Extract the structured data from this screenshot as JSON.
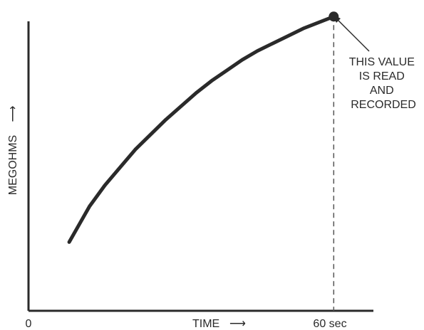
{
  "chart_data": {
    "type": "line",
    "title": "",
    "xlabel": "TIME",
    "ylabel": "MEGOHMS",
    "x_origin_label": "0",
    "x_end_label": "60 sec",
    "x_arrow": "⟶",
    "y_arrow": "⟶",
    "xlim": [
      0,
      65
    ],
    "ylim": [
      0,
      100
    ],
    "series": [
      {
        "x": [
          8,
          10,
          12,
          15,
          18,
          21,
          24,
          27,
          30,
          33,
          36,
          39,
          42,
          45,
          48,
          51,
          54,
          57,
          60
        ],
        "y": [
          23,
          29,
          35,
          42,
          48,
          54,
          59,
          64,
          68.5,
          73,
          77,
          80.5,
          84,
          87,
          89.5,
          92,
          94.5,
          96.5,
          98.5
        ]
      }
    ],
    "marker": {
      "x": 60,
      "y": 98.5
    },
    "annotation": {
      "lines": [
        "THIS VALUE",
        "IS READ",
        "AND",
        "RECORDED"
      ]
    },
    "grid": false,
    "colors": {
      "line": "#2a2a2a",
      "axis": "#2a2a2a",
      "dashed": "#555555"
    }
  }
}
